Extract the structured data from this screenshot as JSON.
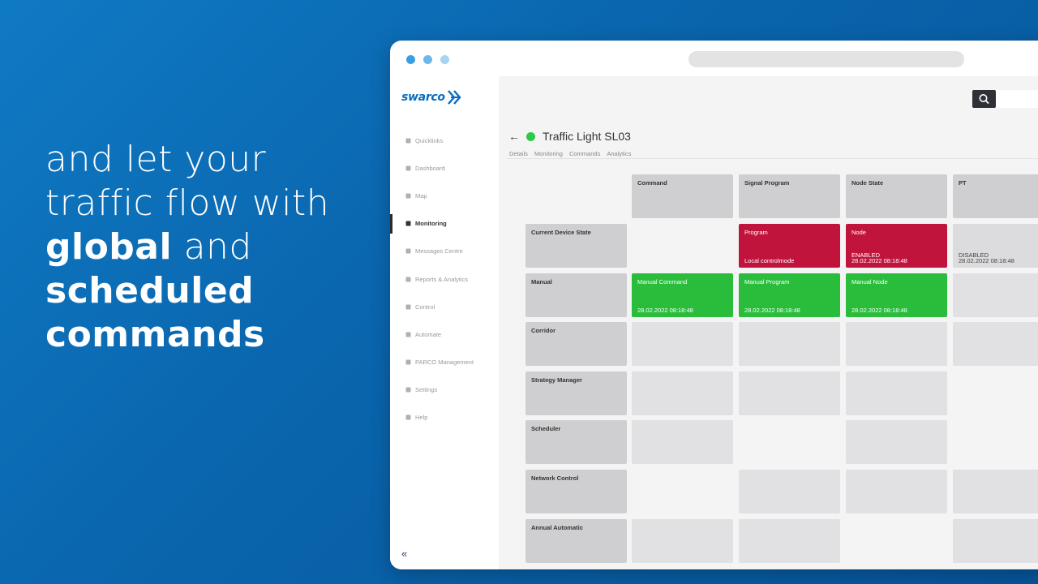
{
  "headline": {
    "line1": "and let your",
    "line2": "traffic flow with",
    "bold1": "global",
    "and": " and",
    "bold2": "scheduled",
    "bold3": "commands"
  },
  "app": {
    "logo": "swarco",
    "nav": [
      {
        "label": "Quicklinks",
        "icon": "bookmark-icon"
      },
      {
        "label": "Dashboard",
        "icon": "home-icon"
      },
      {
        "label": "Map",
        "icon": "map-icon"
      },
      {
        "label": "Monitoring",
        "icon": "monitor-icon",
        "active": true
      },
      {
        "label": "Messages Centre",
        "icon": "users-icon"
      },
      {
        "label": "Reports & Analytics",
        "icon": "home-icon"
      },
      {
        "label": "Control",
        "icon": "clipboard-icon"
      },
      {
        "label": "Automate",
        "icon": "gears-icon"
      },
      {
        "label": "PARCO Management",
        "icon": "parking-icon"
      },
      {
        "label": "Settings",
        "icon": "gear-icon"
      },
      {
        "label": "Help",
        "icon": "help-icon"
      }
    ],
    "collapse": "«"
  },
  "page": {
    "title": "Traffic Light SL03",
    "status_color": "#2ec84a",
    "tabs": [
      "Details",
      "Monitoring",
      "Commands",
      "Analytics"
    ]
  },
  "grid": {
    "columns": [
      "Command",
      "Signal Program",
      "Node State",
      "PT"
    ],
    "rows": [
      {
        "label": "Current Device State",
        "cells": [
          {
            "kind": "none"
          },
          {
            "kind": "red",
            "title": "Program",
            "sub": "Local controlmode"
          },
          {
            "kind": "red",
            "title": "Node",
            "sub_top": "ENABLED",
            "sub": "28.02.2022 08:18:48"
          },
          {
            "kind": "grey",
            "title": "",
            "sub_top": "DISABLED",
            "sub": "28.02.2022 08:18:48"
          }
        ]
      },
      {
        "label": "Manual",
        "cells": [
          {
            "kind": "green",
            "title": "Manual Command",
            "sub": "28.02.2022 08:18:48"
          },
          {
            "kind": "green",
            "title": "Manual Program",
            "sub": "28.02.2022 08:18:48"
          },
          {
            "kind": "green",
            "title": "Manual Node",
            "sub": "28.02.2022 08:18:48"
          },
          {
            "kind": "empty"
          }
        ]
      },
      {
        "label": "Corridor",
        "cells": [
          {
            "kind": "empty"
          },
          {
            "kind": "empty"
          },
          {
            "kind": "empty"
          },
          {
            "kind": "empty"
          }
        ]
      },
      {
        "label": "Strategy Manager",
        "cells": [
          {
            "kind": "empty"
          },
          {
            "kind": "empty"
          },
          {
            "kind": "empty"
          },
          {
            "kind": "none"
          }
        ]
      },
      {
        "label": "Scheduler",
        "cells": [
          {
            "kind": "empty"
          },
          {
            "kind": "none"
          },
          {
            "kind": "empty"
          },
          {
            "kind": "none"
          }
        ]
      },
      {
        "label": "Network Control",
        "cells": [
          {
            "kind": "none"
          },
          {
            "kind": "empty"
          },
          {
            "kind": "empty"
          },
          {
            "kind": "empty"
          }
        ]
      },
      {
        "label": "Annual Automatic",
        "cells": [
          {
            "kind": "empty"
          },
          {
            "kind": "empty"
          },
          {
            "kind": "none"
          },
          {
            "kind": "empty"
          }
        ]
      }
    ]
  }
}
